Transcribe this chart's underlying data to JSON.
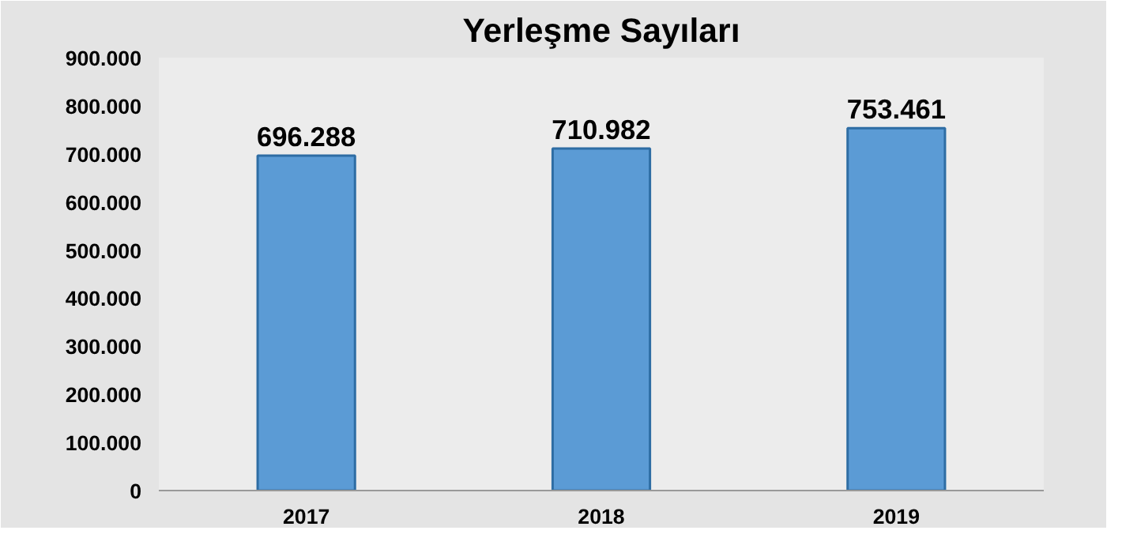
{
  "chart_data": {
    "type": "bar",
    "title": "Yerleşme Sayıları",
    "categories": [
      "2017",
      "2018",
      "2019"
    ],
    "values": [
      696288,
      710982,
      753461
    ],
    "value_labels": [
      "696.288",
      "710.982",
      "753.461"
    ],
    "color": "#5b9bd5",
    "ylim": [
      0,
      900000
    ],
    "yticks": [
      {
        "value": 0,
        "label": "0"
      },
      {
        "value": 100000,
        "label": "100.000"
      },
      {
        "value": 200000,
        "label": "200.000"
      },
      {
        "value": 300000,
        "label": "300.000"
      },
      {
        "value": 400000,
        "label": "400.000"
      },
      {
        "value": 500000,
        "label": "500.000"
      },
      {
        "value": 600000,
        "label": "600.000"
      },
      {
        "value": 700000,
        "label": "700.000"
      },
      {
        "value": 800000,
        "label": "800.000"
      },
      {
        "value": 900000,
        "label": "900.000"
      }
    ],
    "grid": false
  }
}
